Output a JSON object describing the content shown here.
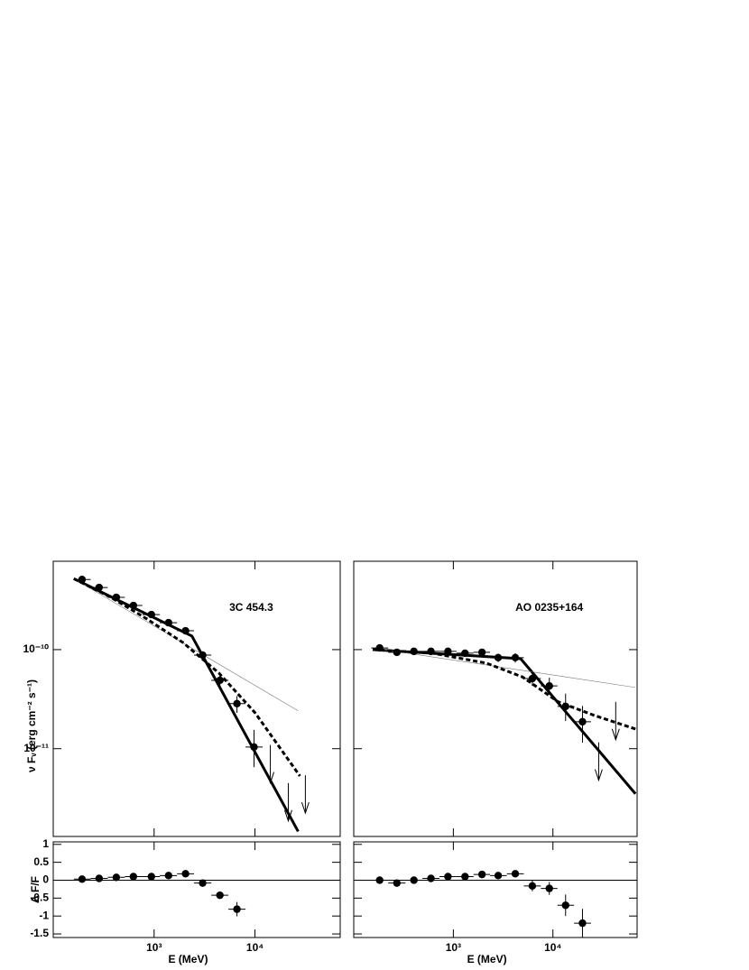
{
  "chart_data": [
    {
      "type": "scatter",
      "xscale": "log",
      "yscale": "log",
      "label": "3C 454.3",
      "ylabel": "ν Fᵥ (erg cm⁻² s⁻¹)",
      "xlim": [
        100,
        70000
      ],
      "ylim": [
        1.3e-12,
        7.8e-10
      ],
      "xticks": [
        {
          "value": 1000,
          "label": "10³"
        },
        {
          "value": 10000,
          "label": "10⁴"
        }
      ],
      "yticks": [
        {
          "value": 1e-10,
          "label": "10⁻¹⁰"
        },
        {
          "value": 1e-11,
          "label": "10⁻¹¹"
        }
      ],
      "x": [
        193,
        285,
        422,
        623,
        940,
        1390,
        2050,
        3030,
        4490,
        6630,
        9790
      ],
      "bins": [
        160,
        235,
        347,
        513,
        765,
        1140,
        1690,
        2490,
        3690,
        5450,
        8060,
        11900
      ],
      "values": [
        5.1e-10,
        4.24e-10,
        3.37e-10,
        2.79e-10,
        2.26e-10,
        1.87e-10,
        1.55e-10,
        8.8e-11,
        4.9e-11,
        2.85e-11,
        1.04e-11
      ],
      "y_low": [
        4.9e-10,
        4.05e-10,
        3.2e-10,
        2.65e-10,
        2.13e-10,
        1.75e-10,
        1.44e-10,
        8e-11,
        4.3e-11,
        2.3e-11,
        6.5e-12
      ],
      "y_high": [
        5.3e-10,
        4.45e-10,
        3.55e-10,
        2.95e-10,
        2.4e-10,
        2e-10,
        1.66e-10,
        9.6e-11,
        5.5e-11,
        3.4e-11,
        1.55e-11
      ],
      "upper_limits": {
        "x": [
          14200,
          21400,
          31600
        ],
        "values": [
          1.09e-11,
          4.5e-12,
          5.4e-12
        ]
      },
      "lines": [
        {
          "style": "solid",
          "x": [
            160,
            2370,
            26800
          ],
          "values": [
            5.2e-10,
            1.37e-10,
            1.46e-12
          ]
        },
        {
          "style": "thin",
          "x": [
            160,
            26800
          ],
          "values": [
            5.2e-10,
            2.41e-11
          ]
        },
        {
          "style": "dashed",
          "x": [
            160,
            373,
            848,
            1930,
            4390,
            10000,
            27900
          ],
          "values": [
            5.2e-10,
            3.37e-10,
            2.04e-10,
            1.18e-10,
            5.8e-11,
            2.31e-11,
            5.3e-12
          ]
        }
      ]
    },
    {
      "type": "scatter",
      "xscale": "log",
      "yscale": "linear",
      "ylabel": "Δ F/F",
      "xlabel": "E (MeV)",
      "xlim": [
        100,
        70000
      ],
      "ylim": [
        -1.6,
        1.07
      ],
      "xticks": [
        {
          "value": 1000,
          "label": "10³"
        },
        {
          "value": 10000,
          "label": "10⁴"
        }
      ],
      "yticks": [
        1,
        0.5,
        0,
        -0.5,
        -1,
        -1.5
      ],
      "reference_line": 0,
      "x": [
        193,
        285,
        422,
        623,
        940,
        1390,
        2050,
        3030,
        4490,
        6630
      ],
      "bins": [
        160,
        235,
        347,
        513,
        765,
        1140,
        1690,
        2490,
        3690,
        5450,
        8060
      ],
      "values": [
        0.03,
        0.05,
        0.08,
        0.1,
        0.1,
        0.13,
        0.18,
        -0.08,
        -0.42,
        -0.81
      ],
      "errors": [
        0.04,
        0.04,
        0.04,
        0.04,
        0.05,
        0.05,
        0.06,
        0.08,
        0.1,
        0.2
      ]
    },
    {
      "type": "scatter",
      "xscale": "log",
      "yscale": "log",
      "label": "AO 0235+164",
      "xlim": [
        100,
        70000
      ],
      "ylim": [
        1.3e-12,
        7.8e-10
      ],
      "xticks": [
        {
          "value": 1000,
          "label": "10³"
        },
        {
          "value": 10000,
          "label": "10⁴"
        }
      ],
      "yticks": [
        {
          "value": 1e-10,
          "label": "10⁻¹⁰"
        },
        {
          "value": 1e-11,
          "label": "10⁻¹¹"
        }
      ],
      "x": [
        182,
        271,
        402,
        596,
        883,
        1310,
        1940,
        2820,
        4190,
        6210,
        9200,
        13400,
        19800
      ],
      "bins": [
        150,
        222,
        330,
        490,
        726,
        1075,
        1595,
        2340,
        3440,
        5100,
        7560,
        11100,
        16300,
        24100
      ],
      "values": [
        1.04e-10,
        9.4e-11,
        9.6e-11,
        9.6e-11,
        9.6e-11,
        9.2e-11,
        9.4e-11,
        8.3e-11,
        8.3e-11,
        5.1e-11,
        4.3e-11,
        2.67e-11,
        1.87e-11
      ],
      "y_low": [
        9.9e-11,
        8.9e-11,
        9.1e-11,
        9.1e-11,
        9e-11,
        8.6e-11,
        8.6e-11,
        7.5e-11,
        7.4e-11,
        4.3e-11,
        3.5e-11,
        1.9e-11,
        1.15e-11
      ],
      "y_high": [
        1.09e-10,
        9.9e-11,
        1.01e-10,
        1.01e-10,
        1.02e-10,
        9.8e-11,
        1.02e-10,
        9.1e-11,
        9.2e-11,
        6e-11,
        5.2e-11,
        3.6e-11,
        2.7e-11
      ],
      "upper_limits": {
        "x": [
          28800,
          42700
        ],
        "values": [
          1.16e-11,
          2.97e-11
        ]
      },
      "lines": [
        {
          "style": "solid",
          "x": [
            155,
            4740,
            67400
          ],
          "values": [
            1e-10,
            8.1e-11,
            3.5e-12
          ]
        },
        {
          "style": "thin",
          "x": [
            155,
            67400
          ],
          "values": [
            1.04e-10,
            4.15e-11
          ]
        },
        {
          "style": "dashed",
          "x": [
            155,
            621,
            2150,
            4940,
            11300,
            25900,
            67400
          ],
          "values": [
            1e-10,
            9.2e-11,
            7.3e-11,
            5.3e-11,
            2.97e-11,
            2.17e-11,
            1.58e-11
          ]
        }
      ]
    },
    {
      "type": "scatter",
      "xscale": "log",
      "yscale": "linear",
      "xlabel": "E (MeV)",
      "xlim": [
        100,
        70000
      ],
      "ylim": [
        -1.6,
        1.07
      ],
      "xticks": [
        {
          "value": 1000,
          "label": "10³"
        },
        {
          "value": 10000,
          "label": "10⁴"
        }
      ],
      "yticks": [
        1,
        0.5,
        0,
        -0.5,
        -1,
        -1.5
      ],
      "reference_line": 0,
      "x": [
        182,
        271,
        402,
        596,
        883,
        1310,
        1940,
        2820,
        4190,
        6210,
        9200,
        13400,
        19800
      ],
      "bins": [
        150,
        222,
        330,
        490,
        726,
        1075,
        1595,
        2340,
        3440,
        5100,
        7560,
        11100,
        16300,
        24100
      ],
      "values": [
        0,
        -0.08,
        0,
        0.05,
        0.1,
        0.1,
        0.16,
        0.13,
        0.18,
        -0.16,
        -0.23,
        -0.7,
        -1.2
      ],
      "errors": [
        0.04,
        0.05,
        0.04,
        0.04,
        0.05,
        0.05,
        0.06,
        0.07,
        0.09,
        0.15,
        0.18,
        0.3,
        0.4
      ]
    }
  ]
}
